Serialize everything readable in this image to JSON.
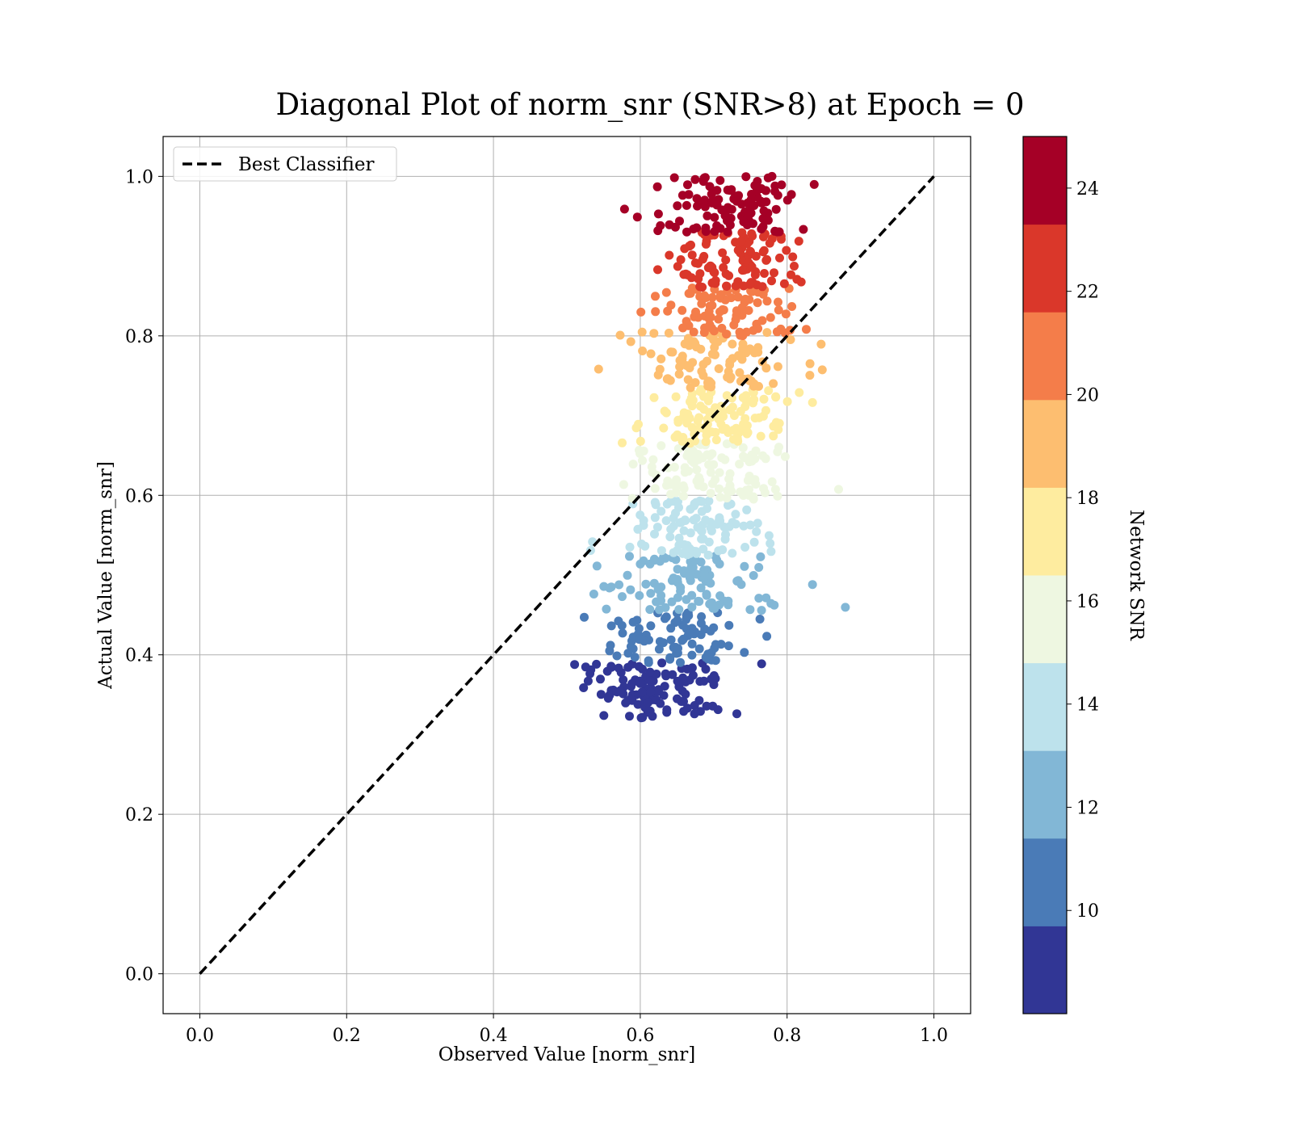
{
  "chart_data": {
    "type": "scatter",
    "title": "Diagonal Plot of norm_snr (SNR>8) at Epoch = 0",
    "xlabel": "Observed Value [norm_snr]",
    "ylabel": "Actual Value [norm_snr]",
    "xlim": [
      -0.05,
      1.05
    ],
    "ylim": [
      -0.05,
      1.05
    ],
    "x_ticks": [
      "0.0",
      "0.2",
      "0.4",
      "0.6",
      "0.8",
      "1.0"
    ],
    "y_ticks": [
      "0.0",
      "0.2",
      "0.4",
      "0.6",
      "0.8",
      "1.0"
    ],
    "grid": true,
    "legend": {
      "position": "upper-left",
      "entries": [
        "Best Classifier"
      ]
    },
    "reference_line": {
      "name": "Best Classifier",
      "x": [
        0.0,
        1.0
      ],
      "y": [
        0.0,
        1.0
      ],
      "style": "dashed",
      "color": "#000000"
    },
    "colorbar": {
      "label": "Network SNR",
      "range": [
        8,
        25
      ],
      "ticks": [
        "10",
        "12",
        "14",
        "16",
        "18",
        "20",
        "22",
        "24"
      ],
      "bands": [
        {
          "from": 8,
          "to": 9.7,
          "color": "#313695"
        },
        {
          "from": 9.7,
          "to": 11.4,
          "color": "#4a7bb7"
        },
        {
          "from": 11.4,
          "to": 13.1,
          "color": "#82b7d6"
        },
        {
          "from": 13.1,
          "to": 14.8,
          "color": "#bde2ec"
        },
        {
          "from": 14.8,
          "to": 16.5,
          "color": "#eef7e1"
        },
        {
          "from": 16.5,
          "to": 18.2,
          "color": "#feec9f"
        },
        {
          "from": 18.2,
          "to": 19.9,
          "color": "#fdbe70"
        },
        {
          "from": 19.9,
          "to": 21.6,
          "color": "#f47d4a"
        },
        {
          "from": 21.6,
          "to": 23.3,
          "color": "#da372a"
        },
        {
          "from": 23.3,
          "to": 25,
          "color": "#a50026"
        }
      ]
    },
    "scatter_groups": [
      {
        "snr_band": 1,
        "color": "#313695",
        "y_range": [
          0.32,
          0.39
        ],
        "x_mean": 0.62,
        "x_sd": 0.055,
        "count": 115
      },
      {
        "snr_band": 2,
        "color": "#4a7bb7",
        "y_range": [
          0.39,
          0.455
        ],
        "x_mean": 0.645,
        "x_sd": 0.05,
        "count": 85
      },
      {
        "snr_band": 3,
        "color": "#82b7d6",
        "y_range": [
          0.455,
          0.525
        ],
        "x_mean": 0.67,
        "x_sd": 0.055,
        "count": 100
      },
      {
        "snr_band": 4,
        "color": "#bde2ec",
        "y_range": [
          0.525,
          0.595
        ],
        "x_mean": 0.685,
        "x_sd": 0.045,
        "count": 100
      },
      {
        "snr_band": 5,
        "color": "#eef7e1",
        "y_range": [
          0.595,
          0.665
        ],
        "x_mean": 0.69,
        "x_sd": 0.055,
        "count": 110
      },
      {
        "snr_band": 6,
        "color": "#feec9f",
        "y_range": [
          0.665,
          0.735
        ],
        "x_mean": 0.7,
        "x_sd": 0.055,
        "count": 110
      },
      {
        "snr_band": 7,
        "color": "#fdbe70",
        "y_range": [
          0.735,
          0.805
        ],
        "x_mean": 0.7,
        "x_sd": 0.055,
        "count": 95
      },
      {
        "snr_band": 8,
        "color": "#f47d4a",
        "y_range": [
          0.8,
          0.86
        ],
        "x_mean": 0.705,
        "x_sd": 0.05,
        "count": 90
      },
      {
        "snr_band": 9,
        "color": "#da372a",
        "y_range": [
          0.86,
          0.93
        ],
        "x_mean": 0.73,
        "x_sd": 0.05,
        "count": 100
      },
      {
        "snr_band": 10,
        "color": "#a50026",
        "y_range": [
          0.93,
          1.0
        ],
        "x_mean": 0.72,
        "x_sd": 0.05,
        "count": 110
      }
    ]
  }
}
